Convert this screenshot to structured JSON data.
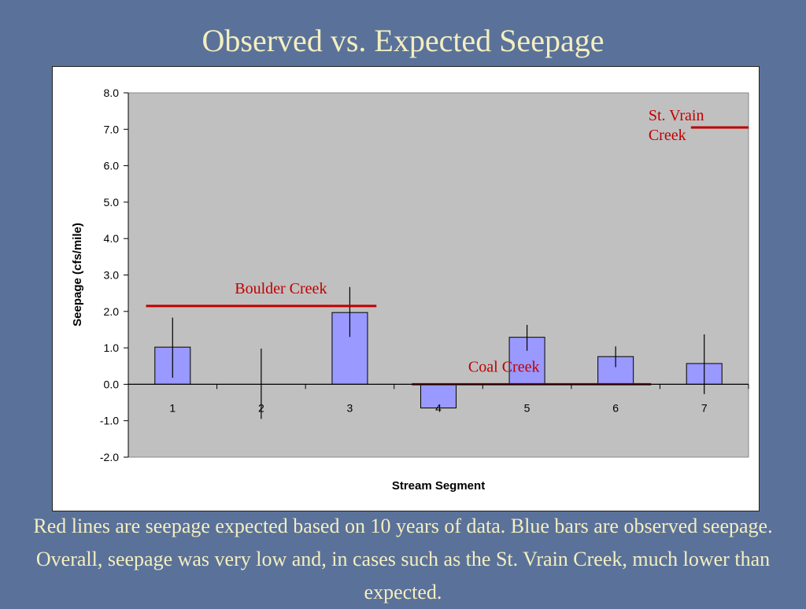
{
  "slide": {
    "title": "Observed vs. Expected Seepage",
    "caption": "Red lines are  seepage expected based on 10 years of data.  Blue bars are observed seepage.  Overall, seepage was very low and, in cases such as the St. Vrain Creek, much lower than expected."
  },
  "colors": {
    "background": "#5a7299",
    "title_text": "#f4eec0",
    "plot_area": "#c0c0c0",
    "bar_fill": "#9999ff",
    "expected_line": "#c00000"
  },
  "chart_data": {
    "type": "bar",
    "xlabel": "Stream Segment",
    "ylabel": "Seepage (cfs/mile)",
    "ylim": [
      -2.0,
      8.0
    ],
    "ytick_step": 1.0,
    "categories": [
      "1",
      "2",
      "3",
      "4",
      "5",
      "6",
      "7"
    ],
    "series": [
      {
        "values": [
          1.02,
          0.0,
          1.97,
          -0.65,
          1.29,
          0.76,
          0.57
        ],
        "error_low": [
          0.18,
          -0.95,
          1.3,
          -0.65,
          0.92,
          0.47,
          -0.27
        ],
        "error_high": [
          1.83,
          0.98,
          2.67,
          -0.65,
          1.63,
          1.04,
          1.37
        ]
      }
    ],
    "expected_lines": [
      {
        "label": "Boulder Creek",
        "value": 2.15,
        "from_x": 0.7,
        "to_x": 3.3
      },
      {
        "label": "Coal Creek",
        "value": 0.0,
        "from_x": 3.7,
        "to_x": 6.4
      },
      {
        "label": "St. Vrain Creek",
        "label_lines": [
          "St. Vrain",
          "Creek"
        ],
        "value": 7.05,
        "from_x": 6.85,
        "to_x": 7.5
      }
    ]
  }
}
